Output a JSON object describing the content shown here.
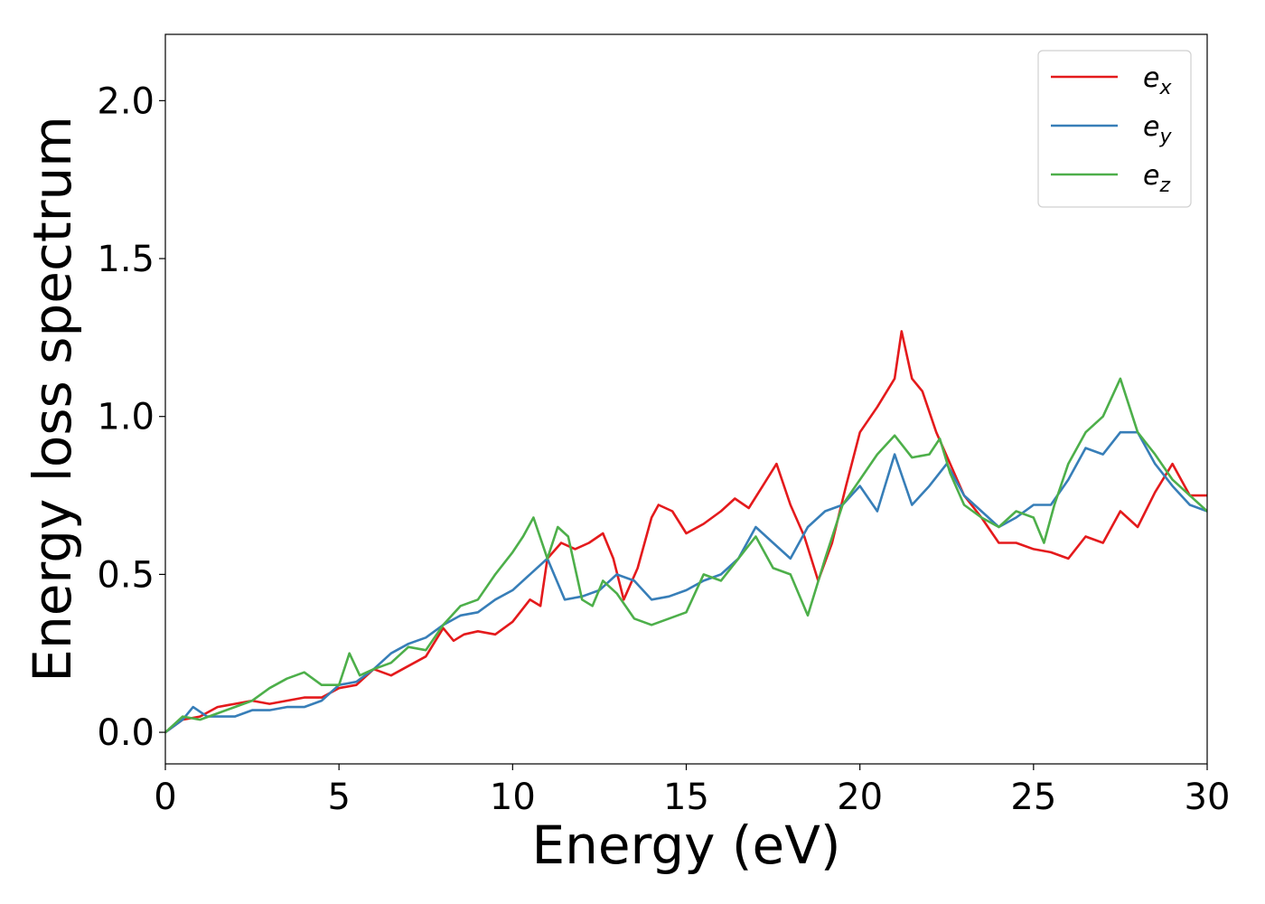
{
  "chart_data": {
    "type": "line",
    "xlabel": "Energy (eV)",
    "ylabel": "Energy loss spectrum",
    "xlim": [
      0,
      30
    ],
    "ylim": [
      -0.1,
      2.21
    ],
    "xticks": [
      0,
      5,
      10,
      15,
      20,
      25,
      30
    ],
    "xtick_labels": [
      "0",
      "5",
      "10",
      "15",
      "20",
      "25",
      "30"
    ],
    "yticks": [
      0.0,
      0.5,
      1.0,
      1.5,
      2.0
    ],
    "ytick_labels": [
      "0.0",
      "0.5",
      "1.0",
      "1.5",
      "2.0"
    ],
    "grid": false,
    "legend_position": "top-right",
    "series": [
      {
        "name": "e_x",
        "name_base": "e",
        "name_sub": "x",
        "color": "#e41a1c",
        "x": [
          0,
          0.5,
          1.0,
          1.5,
          2.0,
          2.5,
          3.0,
          3.5,
          4.0,
          4.5,
          5.0,
          5.5,
          6.0,
          6.5,
          7.0,
          7.5,
          8.0,
          8.3,
          8.6,
          9.0,
          9.5,
          10.0,
          10.5,
          10.8,
          11.0,
          11.4,
          11.8,
          12.2,
          12.6,
          12.9,
          13.2,
          13.6,
          14.0,
          14.2,
          14.6,
          15.0,
          15.5,
          16.0,
          16.4,
          16.8,
          17.2,
          17.6,
          18.0,
          18.4,
          18.8,
          19.2,
          19.6,
          20.0,
          20.5,
          21.0,
          21.2,
          21.5,
          21.8,
          22.2,
          22.6,
          23.0,
          23.5,
          24.0,
          24.5,
          25.0,
          25.5,
          26.0,
          26.5,
          27.0,
          27.5,
          28.0,
          28.5,
          29.0,
          29.5,
          30.0
        ],
        "y": [
          0.0,
          0.04,
          0.05,
          0.08,
          0.09,
          0.1,
          0.09,
          0.1,
          0.11,
          0.11,
          0.14,
          0.15,
          0.2,
          0.18,
          0.21,
          0.24,
          0.33,
          0.29,
          0.31,
          0.32,
          0.31,
          0.35,
          0.42,
          0.4,
          0.55,
          0.6,
          0.58,
          0.6,
          0.63,
          0.55,
          0.42,
          0.52,
          0.68,
          0.72,
          0.7,
          0.63,
          0.66,
          0.7,
          0.74,
          0.71,
          0.78,
          0.85,
          0.72,
          0.62,
          0.48,
          0.6,
          0.78,
          0.95,
          1.03,
          1.12,
          1.27,
          1.12,
          1.08,
          0.95,
          0.85,
          0.75,
          0.68,
          0.6,
          0.6,
          0.58,
          0.57,
          0.55,
          0.62,
          0.6,
          0.7,
          0.65,
          0.76,
          0.85,
          0.75,
          0.75
        ]
      },
      {
        "name": "e_y",
        "name_base": "e",
        "name_sub": "y",
        "color": "#377eb8",
        "x": [
          0,
          0.5,
          0.8,
          1.2,
          1.5,
          2.0,
          2.5,
          3.0,
          3.5,
          4.0,
          4.5,
          5.0,
          5.5,
          6.0,
          6.5,
          7.0,
          7.5,
          8.0,
          8.5,
          9.0,
          9.5,
          10.0,
          10.5,
          11.0,
          11.5,
          12.0,
          12.5,
          13.0,
          13.5,
          14.0,
          14.5,
          15.0,
          15.5,
          16.0,
          16.5,
          17.0,
          17.5,
          18.0,
          18.5,
          19.0,
          19.5,
          20.0,
          20.5,
          21.0,
          21.5,
          22.0,
          22.5,
          23.0,
          23.5,
          24.0,
          24.5,
          25.0,
          25.5,
          26.0,
          26.5,
          27.0,
          27.5,
          28.0,
          28.5,
          29.0,
          29.5,
          30.0
        ],
        "y": [
          0.0,
          0.04,
          0.08,
          0.05,
          0.05,
          0.05,
          0.07,
          0.07,
          0.08,
          0.08,
          0.1,
          0.15,
          0.16,
          0.2,
          0.25,
          0.28,
          0.3,
          0.34,
          0.37,
          0.38,
          0.42,
          0.45,
          0.5,
          0.55,
          0.42,
          0.43,
          0.45,
          0.5,
          0.48,
          0.42,
          0.43,
          0.45,
          0.48,
          0.5,
          0.55,
          0.65,
          0.6,
          0.55,
          0.65,
          0.7,
          0.72,
          0.78,
          0.7,
          0.88,
          0.72,
          0.78,
          0.85,
          0.75,
          0.7,
          0.65,
          0.68,
          0.72,
          0.72,
          0.8,
          0.9,
          0.88,
          0.95,
          0.95,
          0.85,
          0.78,
          0.72,
          0.7
        ]
      },
      {
        "name": "e_z",
        "name_base": "e",
        "name_sub": "z",
        "color": "#4daf4a",
        "x": [
          0,
          0.5,
          1.0,
          1.5,
          2.0,
          2.5,
          3.0,
          3.5,
          4.0,
          4.5,
          5.0,
          5.3,
          5.6,
          6.0,
          6.5,
          7.0,
          7.5,
          8.0,
          8.5,
          9.0,
          9.5,
          10.0,
          10.3,
          10.6,
          11.0,
          11.3,
          11.6,
          12.0,
          12.3,
          12.6,
          13.0,
          13.5,
          14.0,
          14.5,
          15.0,
          15.5,
          16.0,
          16.5,
          17.0,
          17.5,
          18.0,
          18.5,
          19.0,
          19.5,
          20.0,
          20.5,
          21.0,
          21.5,
          22.0,
          22.3,
          22.6,
          23.0,
          23.5,
          24.0,
          24.5,
          25.0,
          25.3,
          25.6,
          26.0,
          26.5,
          27.0,
          27.5,
          28.0,
          28.5,
          29.0,
          29.5,
          30.0
        ],
        "y": [
          0.0,
          0.05,
          0.04,
          0.06,
          0.08,
          0.1,
          0.14,
          0.17,
          0.19,
          0.15,
          0.15,
          0.25,
          0.18,
          0.2,
          0.22,
          0.27,
          0.26,
          0.34,
          0.4,
          0.42,
          0.5,
          0.57,
          0.62,
          0.68,
          0.55,
          0.65,
          0.62,
          0.42,
          0.4,
          0.48,
          0.44,
          0.36,
          0.34,
          0.36,
          0.38,
          0.5,
          0.48,
          0.55,
          0.62,
          0.52,
          0.5,
          0.37,
          0.55,
          0.72,
          0.8,
          0.88,
          0.94,
          0.87,
          0.88,
          0.93,
          0.82,
          0.72,
          0.68,
          0.65,
          0.7,
          0.68,
          0.6,
          0.72,
          0.85,
          0.95,
          1.0,
          1.12,
          0.95,
          0.88,
          0.8,
          0.75,
          0.7
        ]
      }
    ]
  }
}
